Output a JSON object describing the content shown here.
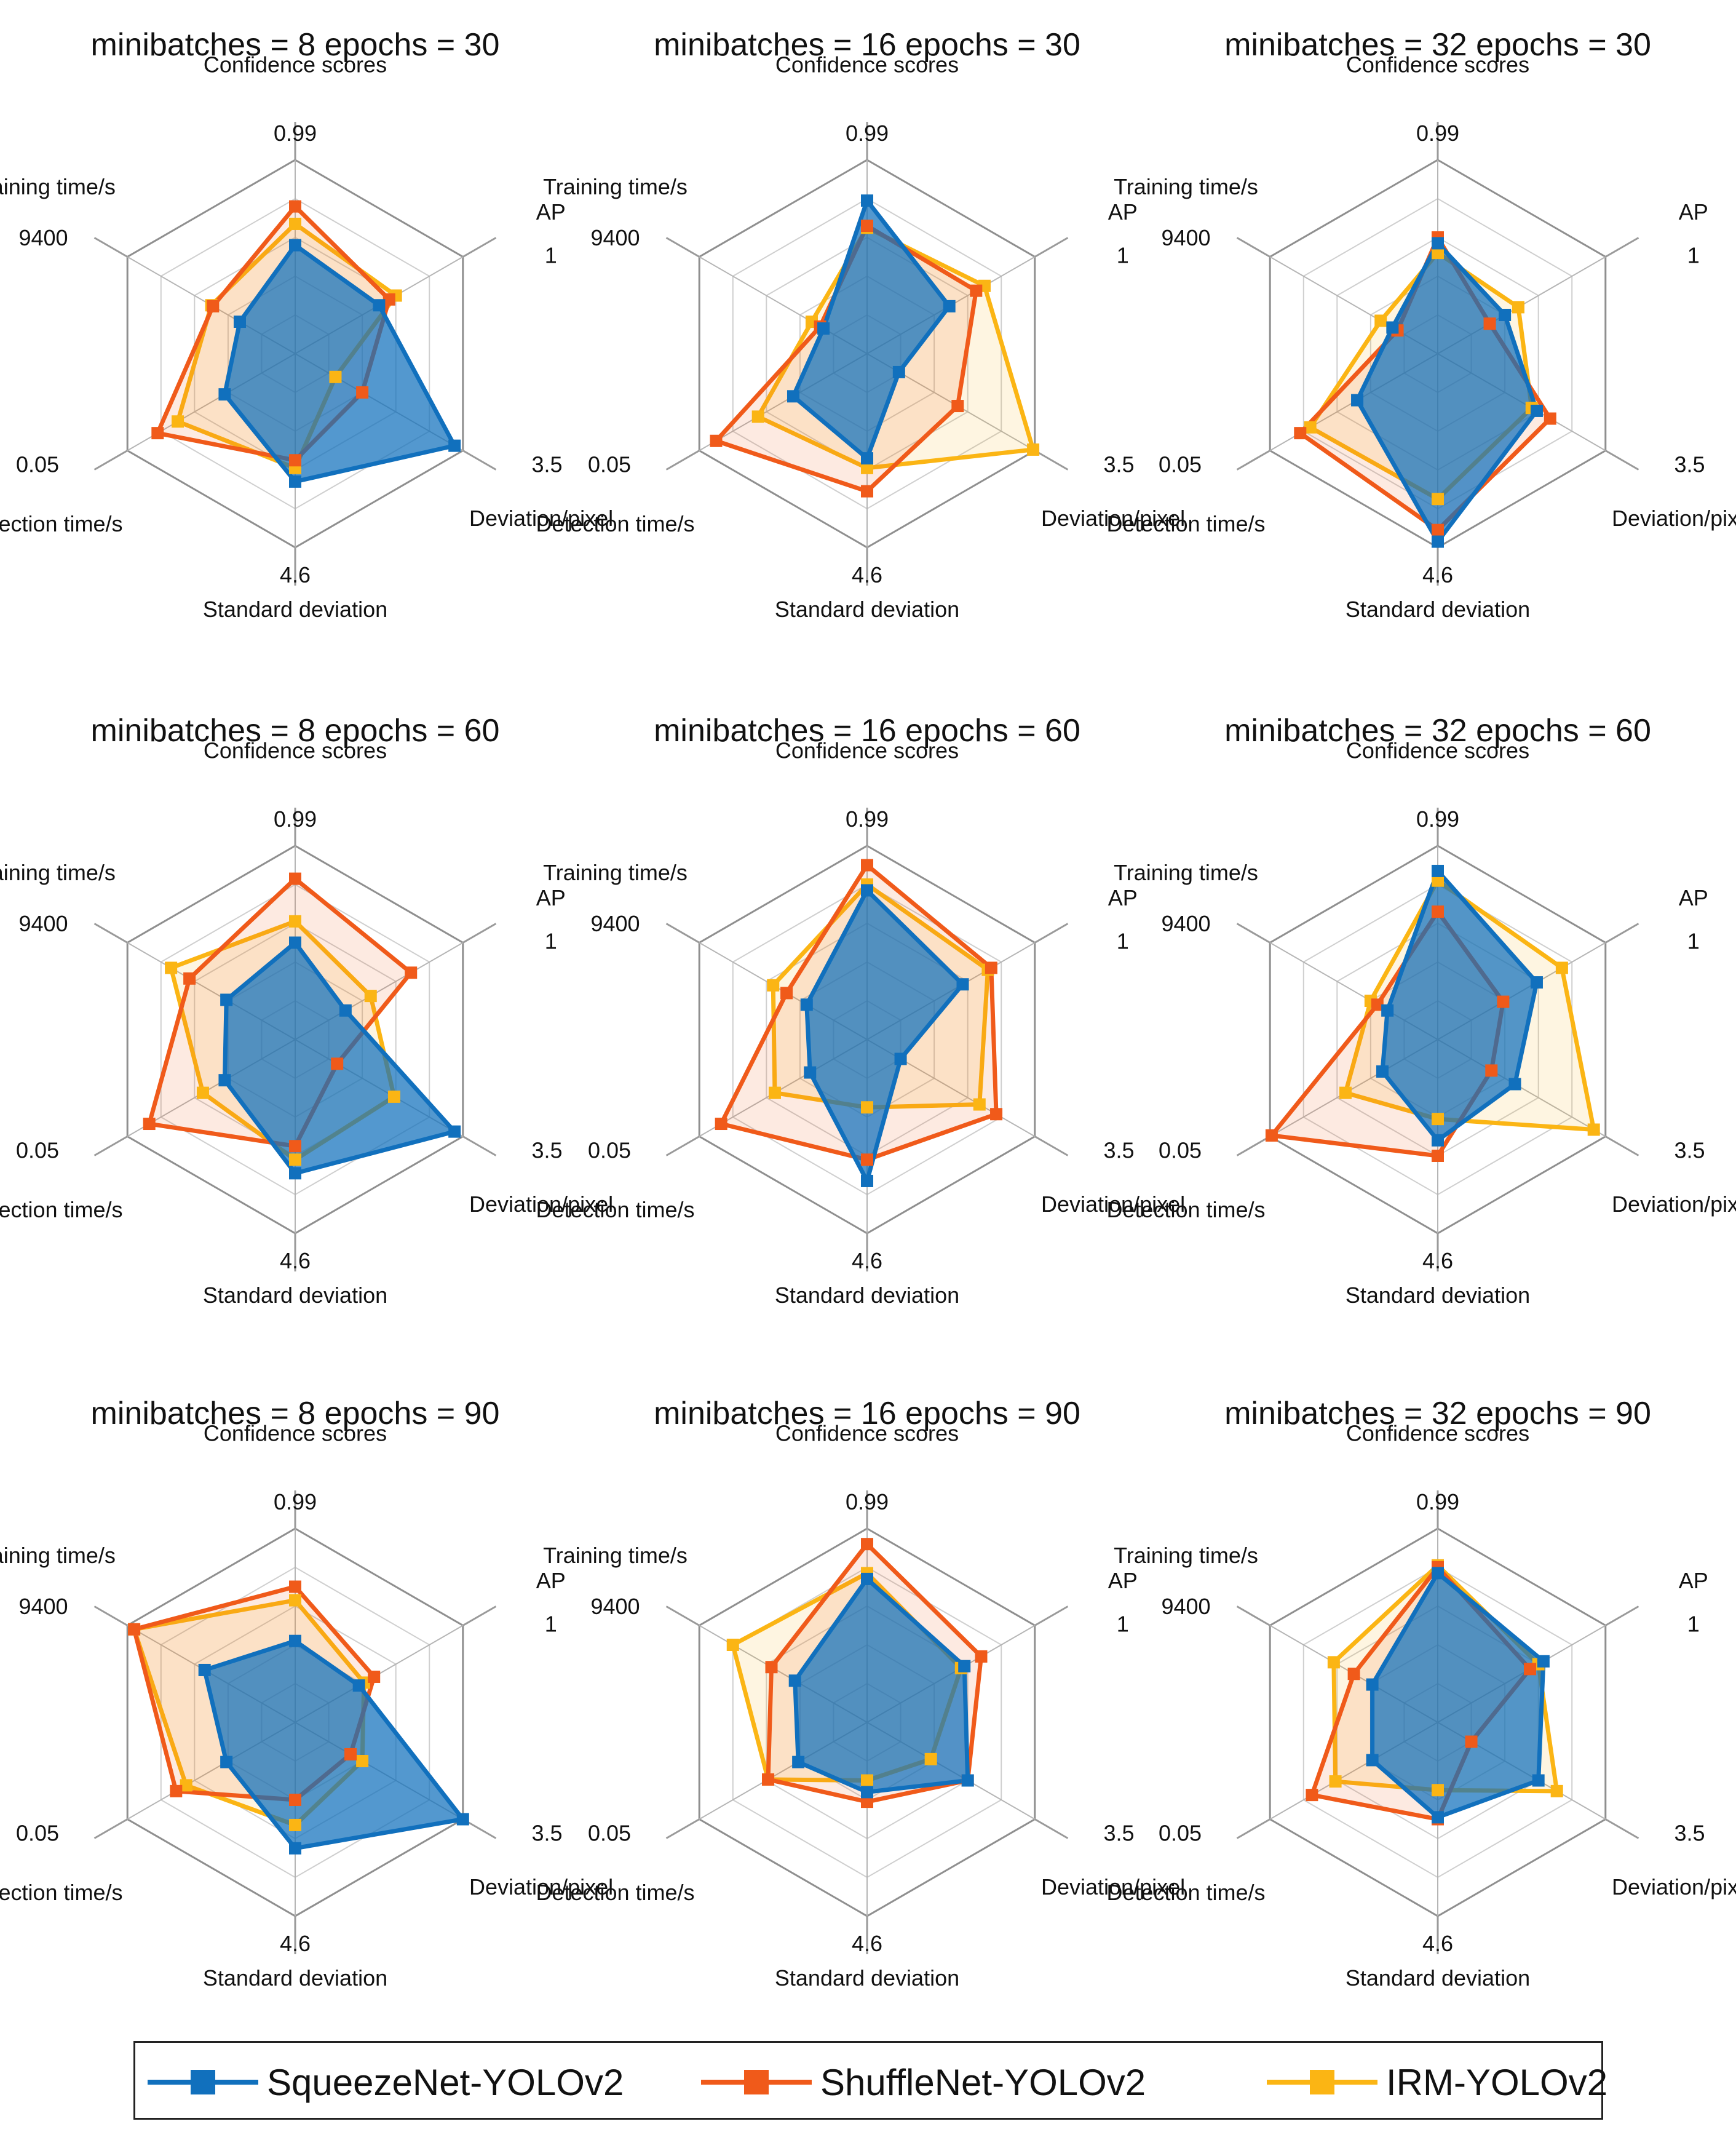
{
  "legend": {
    "items": [
      {
        "label": "SqueezeNet-YOLOv2",
        "color": "#1170bd"
      },
      {
        "label": "ShuffleNet-YOLOv2",
        "color": "#f05a1a"
      },
      {
        "label": "IRM-YOLOv2",
        "color": "#fbb514"
      }
    ]
  },
  "chart_data": [
    {
      "type": "radar",
      "title": "minibatches = 8   epochs = 30",
      "axes": [
        "Confidence scores",
        "AP",
        "Deviation/pixel",
        "Standard deviation",
        "Detection time/s",
        "Training time/s"
      ],
      "axis_max_labels": [
        "0.99",
        "1",
        "3.5",
        "4.6",
        "0.05",
        "9400"
      ],
      "series": [
        {
          "name": "SqueezeNet-YOLOv2",
          "values": [
            0.56,
            0.5,
            0.95,
            0.66,
            0.42,
            0.33
          ]
        },
        {
          "name": "ShuffleNet-YOLOv2",
          "values": [
            0.76,
            0.56,
            0.4,
            0.55,
            0.82,
            0.49
          ]
        },
        {
          "name": "IRM-YOLOv2",
          "values": [
            0.67,
            0.6,
            0.24,
            0.59,
            0.7,
            0.5
          ]
        }
      ]
    },
    {
      "type": "radar",
      "title": "minibatches = 16   epochs = 30",
      "axes": [
        "Confidence scores",
        "AP",
        "Deviation/pixel",
        "Standard deviation",
        "Detection time/s",
        "Training time/s"
      ],
      "axis_max_labels": [
        "0.99",
        "1",
        "3.5",
        "4.6",
        "0.05",
        "9400"
      ],
      "series": [
        {
          "name": "SqueezeNet-YOLOv2",
          "values": [
            0.79,
            0.49,
            0.19,
            0.54,
            0.44,
            0.26
          ]
        },
        {
          "name": "ShuffleNet-YOLOv2",
          "values": [
            0.66,
            0.65,
            0.54,
            0.71,
            0.9,
            0.28
          ]
        },
        {
          "name": "IRM-YOLOv2",
          "values": [
            0.65,
            0.7,
            0.99,
            0.59,
            0.65,
            0.33
          ]
        }
      ]
    },
    {
      "type": "radar",
      "title": "minibatches = 32   epochs = 30",
      "axes": [
        "Confidence scores",
        "AP",
        "Deviation/pixel",
        "Standard deviation",
        "Detection time/s",
        "Training time/s"
      ],
      "axis_max_labels": [
        "0.99",
        "1",
        "3.5",
        "4.6",
        "0.05",
        "9400"
      ],
      "series": [
        {
          "name": "SqueezeNet-YOLOv2",
          "values": [
            0.57,
            0.4,
            0.59,
            0.97,
            0.48,
            0.27
          ]
        },
        {
          "name": "ShuffleNet-YOLOv2",
          "values": [
            0.6,
            0.31,
            0.67,
            0.91,
            0.82,
            0.24
          ]
        },
        {
          "name": "IRM-YOLOv2",
          "values": [
            0.52,
            0.48,
            0.56,
            0.75,
            0.76,
            0.34
          ]
        }
      ]
    },
    {
      "type": "radar",
      "title": "minibatches = 8   epochs = 60",
      "axes": [
        "Confidence scores",
        "AP",
        "Deviation/pixel",
        "Standard deviation",
        "Detection time/s",
        "Training time/s"
      ],
      "axis_max_labels": [
        "0.99",
        "1",
        "3.5",
        "4.6",
        "0.05",
        "9400"
      ],
      "series": [
        {
          "name": "SqueezeNet-YOLOv2",
          "values": [
            0.5,
            0.3,
            0.95,
            0.69,
            0.42,
            0.41
          ]
        },
        {
          "name": "ShuffleNet-YOLOv2",
          "values": [
            0.83,
            0.69,
            0.25,
            0.55,
            0.87,
            0.63
          ]
        },
        {
          "name": "IRM-YOLOv2",
          "values": [
            0.61,
            0.45,
            0.59,
            0.62,
            0.55,
            0.74
          ]
        }
      ]
    },
    {
      "type": "radar",
      "title": "minibatches = 16   epochs = 60",
      "axes": [
        "Confidence scores",
        "AP",
        "Deviation/pixel",
        "Standard deviation",
        "Detection time/s",
        "Training time/s"
      ],
      "axis_max_labels": [
        "0.99",
        "1",
        "3.5",
        "4.6",
        "0.05",
        "9400"
      ],
      "series": [
        {
          "name": "SqueezeNet-YOLOv2",
          "values": [
            0.77,
            0.57,
            0.2,
            0.73,
            0.34,
            0.36
          ]
        },
        {
          "name": "ShuffleNet-YOLOv2",
          "values": [
            0.9,
            0.74,
            0.77,
            0.62,
            0.87,
            0.48
          ]
        },
        {
          "name": "IRM-YOLOv2",
          "values": [
            0.8,
            0.72,
            0.67,
            0.35,
            0.55,
            0.56
          ]
        }
      ]
    },
    {
      "type": "radar",
      "title": "minibatches = 32   epochs = 60",
      "axes": [
        "Confidence scores",
        "AP",
        "Deviation/pixel",
        "Standard deviation",
        "Detection time/s",
        "Training time/s"
      ],
      "axis_max_labels": [
        "0.99",
        "1",
        "3.5",
        "4.6",
        "0.05",
        "9400"
      ],
      "series": [
        {
          "name": "SqueezeNet-YOLOv2",
          "values": [
            0.87,
            0.59,
            0.46,
            0.52,
            0.33,
            0.3
          ]
        },
        {
          "name": "ShuffleNet-YOLOv2",
          "values": [
            0.66,
            0.39,
            0.32,
            0.6,
            0.99,
            0.36
          ]
        },
        {
          "name": "IRM-YOLOv2",
          "values": [
            0.82,
            0.74,
            0.93,
            0.41,
            0.55,
            0.4
          ]
        }
      ]
    },
    {
      "type": "radar",
      "title": "minibatches = 8   epochs = 90",
      "axes": [
        "Confidence scores",
        "AP",
        "Deviation/pixel",
        "Standard deviation",
        "Detection time/s",
        "Training time/s"
      ],
      "axis_max_labels": [
        "0.99",
        "1",
        "3.5",
        "4.6",
        "0.05",
        "9400"
      ],
      "series": [
        {
          "name": "SqueezeNet-YOLOv2",
          "values": [
            0.42,
            0.38,
            1.0,
            0.65,
            0.41,
            0.54
          ]
        },
        {
          "name": "ShuffleNet-YOLOv2",
          "values": [
            0.7,
            0.47,
            0.33,
            0.4,
            0.71,
            0.96
          ]
        },
        {
          "name": "IRM-YOLOv2",
          "values": [
            0.63,
            0.41,
            0.4,
            0.53,
            0.65,
            0.96
          ]
        }
      ]
    },
    {
      "type": "radar",
      "title": "minibatches = 16   epochs = 90",
      "axes": [
        "Confidence scores",
        "AP",
        "Deviation/pixel",
        "Standard deviation",
        "Detection time/s",
        "Training time/s"
      ],
      "axis_max_labels": [
        "0.99",
        "1",
        "3.5",
        "4.6",
        "0.05",
        "9400"
      ],
      "series": [
        {
          "name": "SqueezeNet-YOLOv2",
          "values": [
            0.74,
            0.58,
            0.6,
            0.36,
            0.41,
            0.43
          ]
        },
        {
          "name": "ShuffleNet-YOLOv2",
          "values": [
            0.92,
            0.68,
            0.6,
            0.41,
            0.59,
            0.57
          ]
        },
        {
          "name": "IRM-YOLOv2",
          "values": [
            0.77,
            0.56,
            0.38,
            0.3,
            0.59,
            0.8
          ]
        }
      ]
    },
    {
      "type": "radar",
      "title": "minibatches = 32   epochs = 90",
      "axes": [
        "Confidence scores",
        "AP",
        "Deviation/pixel",
        "Standard deviation",
        "Detection time/s",
        "Training time/s"
      ],
      "axis_max_labels": [
        "0.99",
        "1",
        "3.5",
        "4.6",
        "0.05",
        "9400"
      ],
      "series": [
        {
          "name": "SqueezeNet-YOLOv2",
          "values": [
            0.77,
            0.63,
            0.6,
            0.49,
            0.39,
            0.39
          ]
        },
        {
          "name": "ShuffleNet-YOLOv2",
          "values": [
            0.8,
            0.55,
            0.2,
            0.5,
            0.75,
            0.5
          ]
        },
        {
          "name": "IRM-YOLOv2",
          "values": [
            0.81,
            0.6,
            0.71,
            0.35,
            0.61,
            0.62
          ]
        }
      ]
    }
  ]
}
